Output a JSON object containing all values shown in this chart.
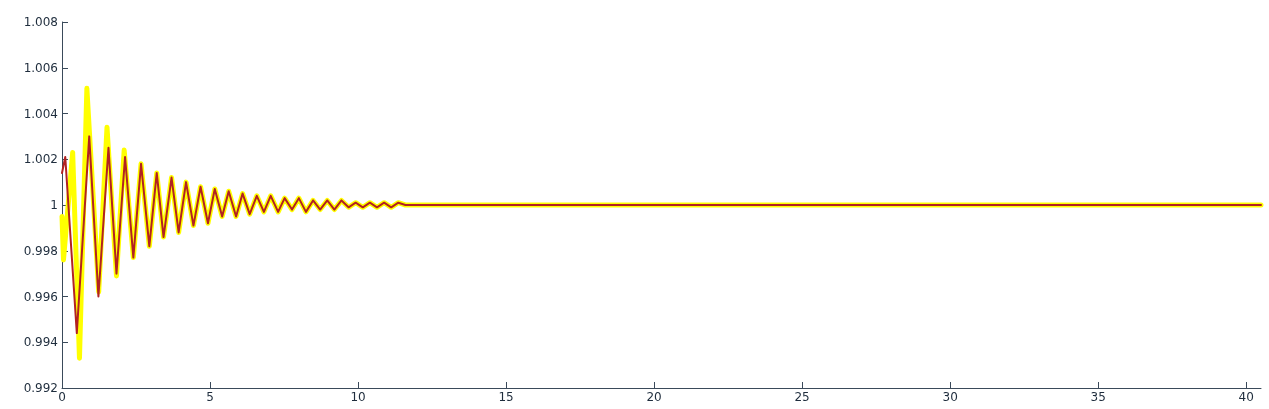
{
  "chart_data": {
    "type": "line",
    "xlim": [
      0,
      40.5
    ],
    "xticks": [
      0,
      5,
      10,
      15,
      20,
      25,
      30,
      35,
      40
    ],
    "ylim": [
      0.992,
      1.008
    ],
    "yticks": [
      0.992,
      0.994,
      0.996,
      0.998,
      1,
      1.002,
      1.004,
      1.006,
      1.008
    ],
    "grid": false,
    "marker": "none",
    "line_style": "solid",
    "series": [
      {
        "color": "#ffff00",
        "x": [
          0,
          0.05,
          0.36,
          0.59,
          0.84,
          1.24,
          1.52,
          1.84,
          2.1,
          2.41,
          2.67,
          2.95,
          3.2,
          3.43,
          3.7,
          3.94,
          4.19,
          4.44,
          4.68,
          4.93,
          5.16,
          5.41,
          5.63,
          5.88,
          6.1,
          6.34,
          6.58,
          6.82,
          7.05,
          7.3,
          7.52,
          7.77,
          8.0,
          8.24,
          8.48,
          8.72,
          8.96,
          9.2,
          9.44,
          9.68,
          9.92,
          10.16,
          10.4,
          10.64,
          10.88,
          11.12,
          11.36,
          11.6,
          12,
          40.5
        ],
        "values": [
          0.9995,
          0.9976,
          1.0023,
          0.9933,
          1.0051,
          0.9962,
          1.0034,
          0.9969,
          1.0024,
          0.9977,
          1.0018,
          0.9982,
          1.0014,
          0.9986,
          1.0012,
          0.9988,
          1.001,
          0.9991,
          1.0008,
          0.9992,
          1.0007,
          0.9995,
          1.0006,
          0.9995,
          1.0005,
          0.9996,
          1.0004,
          0.9997,
          1.0004,
          0.9997,
          1.0003,
          0.9998,
          1.0003,
          0.9997,
          1.0002,
          0.9998,
          1.0002,
          0.9998,
          1.0002,
          0.9999,
          1.0001,
          0.9999,
          1.0001,
          0.9999,
          1.0001,
          0.9999,
          1.0001,
          1.0,
          1.0,
          1.0
        ]
      },
      {
        "color": "#b22222",
        "x": [
          0,
          0.11,
          0.5,
          0.92,
          1.23,
          1.57,
          1.84,
          2.13,
          2.41,
          2.67,
          2.95,
          3.2,
          3.43,
          3.7,
          3.94,
          4.19,
          4.44,
          4.68,
          4.93,
          5.16,
          5.41,
          5.63,
          5.88,
          6.1,
          6.34,
          6.58,
          6.82,
          7.05,
          7.3,
          7.52,
          7.77,
          8.0,
          8.24,
          8.48,
          8.72,
          8.96,
          9.2,
          9.44,
          9.68,
          9.92,
          10.16,
          10.4,
          10.64,
          10.88,
          11.12,
          11.36,
          11.6,
          12,
          40.5
        ],
        "values": [
          1.0014,
          1.0021,
          0.9944,
          1.003,
          0.996,
          1.0025,
          0.997,
          1.0021,
          0.9977,
          1.0018,
          0.9982,
          1.0014,
          0.9986,
          1.0012,
          0.9988,
          1.001,
          0.9991,
          1.0008,
          0.9992,
          1.0007,
          0.9995,
          1.0006,
          0.9995,
          1.0005,
          0.9996,
          1.0004,
          0.9997,
          1.0004,
          0.9997,
          1.0003,
          0.9998,
          1.0003,
          0.9997,
          1.0002,
          0.9998,
          1.0002,
          0.9998,
          1.0002,
          0.9999,
          1.0001,
          0.9999,
          1.0001,
          0.9999,
          1.0001,
          0.9999,
          1.0001,
          1.0,
          1.0,
          1.0
        ]
      }
    ]
  }
}
